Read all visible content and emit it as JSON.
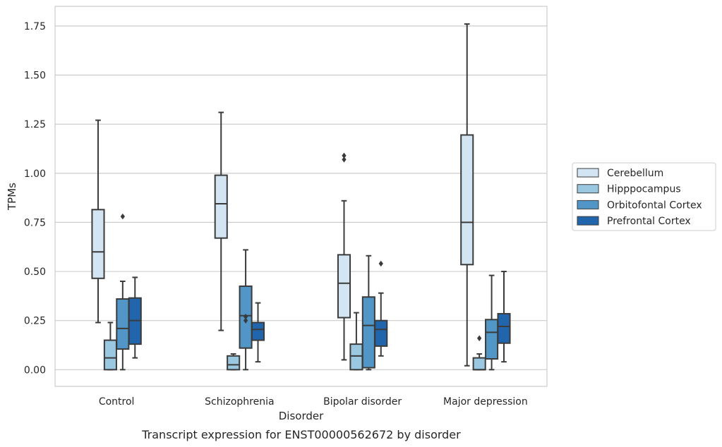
{
  "chart_data": {
    "type": "box",
    "title": "",
    "caption": "Transcript expression for ENST00000562672 by disorder",
    "xlabel": "Disorder",
    "ylabel": "TPMs",
    "ylim": [
      -0.085,
      1.85
    ],
    "yticks": [
      "0.00",
      "0.25",
      "0.50",
      "0.75",
      "1.00",
      "1.25",
      "1.50",
      "1.75"
    ],
    "ytick_values": [
      0,
      0.25,
      0.5,
      0.75,
      1.0,
      1.25,
      1.5,
      1.75
    ],
    "grid": "horizontal",
    "legend_position": "right",
    "categories": [
      "Control",
      "Schizophrenia",
      "Bipolar disorder",
      "Major depression"
    ],
    "series": [
      {
        "name": "Cerebellum",
        "color": "#d3e4f3",
        "boxes": [
          {
            "whislo": 0.24,
            "q1": 0.465,
            "med": 0.6,
            "q3": 0.815,
            "whishi": 1.27,
            "fliers": []
          },
          {
            "whislo": 0.2,
            "q1": 0.67,
            "med": 0.845,
            "q3": 0.99,
            "whishi": 1.31,
            "fliers": []
          },
          {
            "whislo": 0.05,
            "q1": 0.265,
            "med": 0.44,
            "q3": 0.585,
            "whishi": 0.86,
            "fliers": [
              1.07,
              1.09
            ]
          },
          {
            "whislo": 0.02,
            "q1": 0.535,
            "med": 0.75,
            "q3": 1.195,
            "whishi": 1.76,
            "fliers": []
          }
        ]
      },
      {
        "name": "Hipppocampus",
        "color": "#9ac8e0",
        "boxes": [
          {
            "whislo": 0.0,
            "q1": 0.0,
            "med": 0.06,
            "q3": 0.15,
            "whishi": 0.24,
            "fliers": []
          },
          {
            "whislo": 0.0,
            "q1": 0.0,
            "med": 0.025,
            "q3": 0.07,
            "whishi": 0.08,
            "fliers": []
          },
          {
            "whislo": 0.0,
            "q1": 0.0,
            "med": 0.07,
            "q3": 0.13,
            "whishi": 0.29,
            "fliers": []
          },
          {
            "whislo": 0.0,
            "q1": 0.0,
            "med": 0.0,
            "q3": 0.06,
            "whishi": 0.08,
            "fliers": [
              0.16
            ]
          }
        ]
      },
      {
        "name": "Orbitofontal Cortex",
        "color": "#5196c6",
        "boxes": [
          {
            "whislo": 0.0,
            "q1": 0.105,
            "med": 0.21,
            "q3": 0.36,
            "whishi": 0.45,
            "fliers": [
              0.78
            ]
          },
          {
            "whislo": 0.0,
            "q1": 0.11,
            "med": 0.275,
            "q3": 0.425,
            "whishi": 0.61,
            "fliers": [
              0.25,
              0.27
            ]
          },
          {
            "whislo": 0.0,
            "q1": 0.01,
            "med": 0.225,
            "q3": 0.37,
            "whishi": 0.58,
            "fliers": []
          },
          {
            "whislo": 0.0,
            "q1": 0.055,
            "med": 0.19,
            "q3": 0.255,
            "whishi": 0.48,
            "fliers": []
          }
        ]
      },
      {
        "name": "Prefrontal Cortex",
        "color": "#2166ac",
        "boxes": [
          {
            "whislo": 0.06,
            "q1": 0.13,
            "med": 0.25,
            "q3": 0.365,
            "whishi": 0.47,
            "fliers": []
          },
          {
            "whislo": 0.04,
            "q1": 0.15,
            "med": 0.205,
            "q3": 0.24,
            "whishi": 0.34,
            "fliers": []
          },
          {
            "whislo": 0.07,
            "q1": 0.12,
            "med": 0.205,
            "q3": 0.25,
            "whishi": 0.39,
            "fliers": [
              0.54
            ]
          },
          {
            "whislo": 0.04,
            "q1": 0.135,
            "med": 0.22,
            "q3": 0.285,
            "whishi": 0.5,
            "fliers": []
          }
        ]
      }
    ]
  }
}
